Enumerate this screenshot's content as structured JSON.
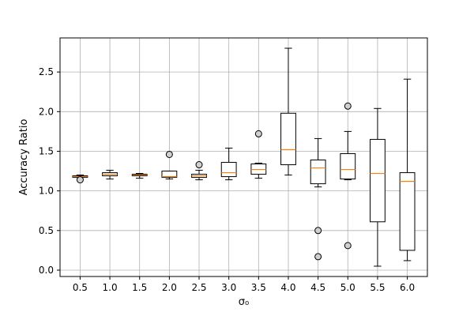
{
  "chart_data": {
    "type": "boxplot",
    "xlabel": "σ₀",
    "ylabel": "Accuracy Ratio",
    "ylim": [
      -0.08,
      2.93
    ],
    "yticks": [
      0.0,
      0.5,
      1.0,
      1.5,
      2.0,
      2.5
    ],
    "ytick_labels": [
      "0.0",
      "0.5",
      "1.0",
      "1.5",
      "2.0",
      "2.5"
    ],
    "grid": true,
    "colors": {
      "box": "#000000",
      "median": "#ff7f0e",
      "grid": "#b0b0b0"
    },
    "categories": [
      "0.5",
      "1.0",
      "1.5",
      "2.0",
      "2.5",
      "3.0",
      "3.5",
      "4.0",
      "4.5",
      "5.0",
      "5.5",
      "6.0"
    ],
    "boxes": [
      {
        "label": "0.5",
        "whisker_low": 1.17,
        "q1": 1.17,
        "median": 1.18,
        "q3": 1.19,
        "whisker_high": 1.2,
        "outliers": [
          1.14
        ]
      },
      {
        "label": "1.0",
        "whisker_low": 1.15,
        "q1": 1.19,
        "median": 1.21,
        "q3": 1.23,
        "whisker_high": 1.26,
        "outliers": []
      },
      {
        "label": "1.5",
        "whisker_low": 1.16,
        "q1": 1.19,
        "median": 1.2,
        "q3": 1.21,
        "whisker_high": 1.22,
        "outliers": []
      },
      {
        "label": "2.0",
        "whisker_low": 1.15,
        "q1": 1.17,
        "median": 1.18,
        "q3": 1.25,
        "whisker_high": 1.25,
        "outliers": [
          1.46
        ]
      },
      {
        "label": "2.5",
        "whisker_low": 1.14,
        "q1": 1.17,
        "median": 1.19,
        "q3": 1.21,
        "whisker_high": 1.26,
        "outliers": [
          1.33
        ]
      },
      {
        "label": "3.0",
        "whisker_low": 1.14,
        "q1": 1.18,
        "median": 1.23,
        "q3": 1.36,
        "whisker_high": 1.54,
        "outliers": []
      },
      {
        "label": "3.5",
        "whisker_low": 1.16,
        "q1": 1.21,
        "median": 1.27,
        "q3": 1.34,
        "whisker_high": 1.35,
        "outliers": [
          1.72
        ]
      },
      {
        "label": "4.0",
        "whisker_low": 1.2,
        "q1": 1.33,
        "median": 1.52,
        "q3": 1.98,
        "whisker_high": 2.8,
        "outliers": []
      },
      {
        "label": "4.5",
        "whisker_low": 1.05,
        "q1": 1.09,
        "median": 1.29,
        "q3": 1.39,
        "whisker_high": 1.66,
        "outliers": [
          0.5,
          0.17
        ]
      },
      {
        "label": "5.0",
        "whisker_low": 1.14,
        "q1": 1.15,
        "median": 1.27,
        "q3": 1.47,
        "whisker_high": 1.75,
        "outliers": [
          2.07,
          0.31
        ]
      },
      {
        "label": "5.5",
        "whisker_low": 0.05,
        "q1": 0.61,
        "median": 1.22,
        "q3": 1.65,
        "whisker_high": 2.04,
        "outliers": []
      },
      {
        "label": "6.0",
        "whisker_low": 0.12,
        "q1": 0.25,
        "median": 1.12,
        "q3": 1.23,
        "whisker_high": 2.41,
        "outliers": []
      }
    ]
  }
}
